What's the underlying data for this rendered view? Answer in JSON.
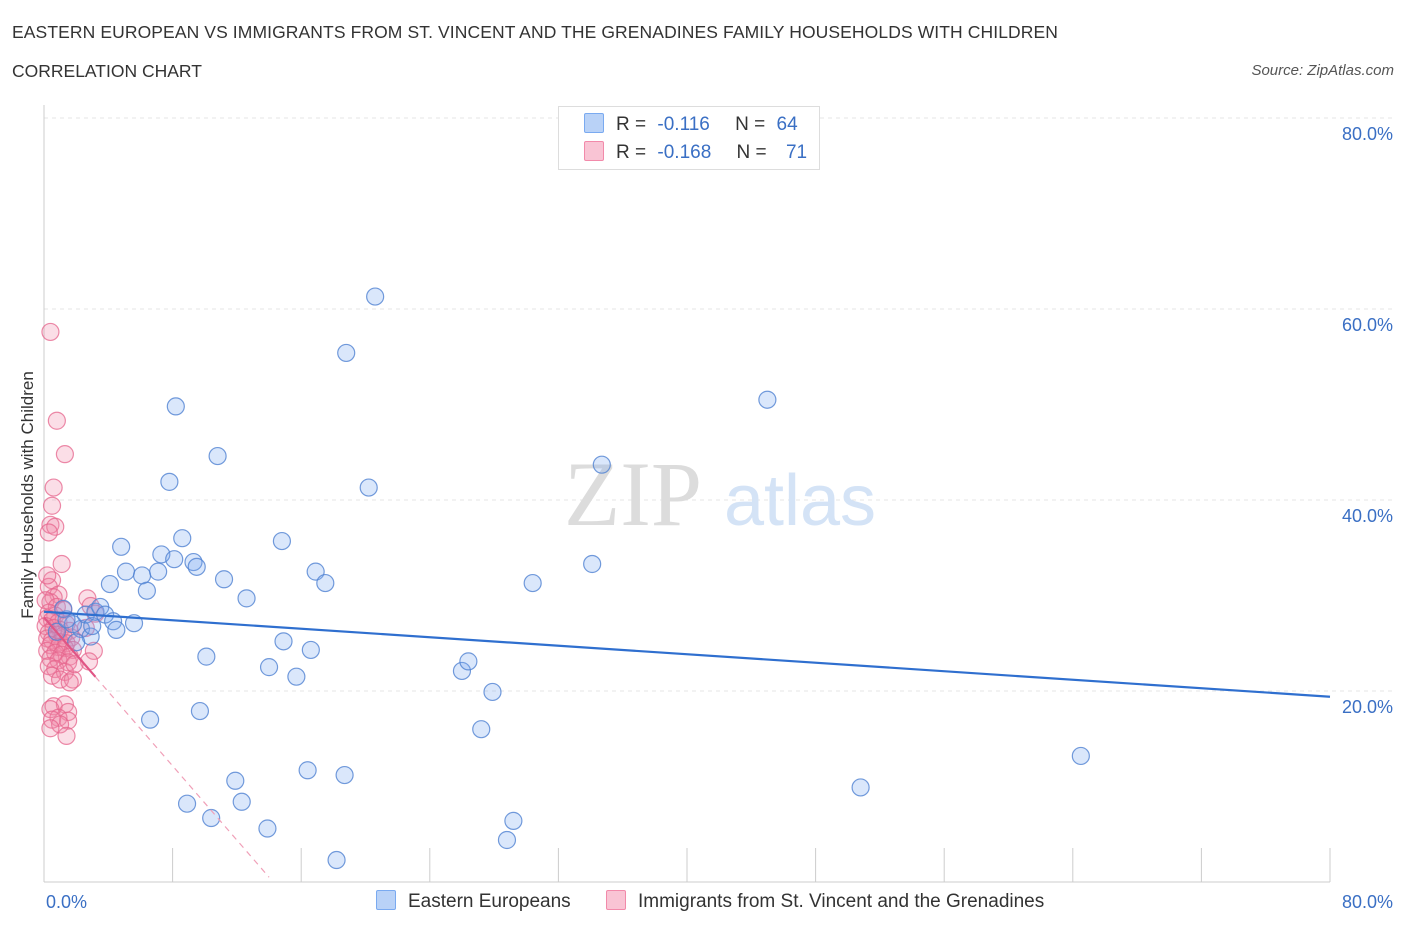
{
  "title": "EASTERN EUROPEAN VS IMMIGRANTS FROM ST. VINCENT AND THE GRENADINES FAMILY HOUSEHOLDS WITH CHILDREN",
  "subtitle": "CORRELATION CHART",
  "source": "Source: ZipAtlas.com",
  "watermark": {
    "zip": "ZIP",
    "atlas": "atlas"
  },
  "legend": {
    "r_label": "R =",
    "n_label": "N =",
    "series": [
      {
        "r": "-0.116",
        "n": "64",
        "color": "#7aaaf0"
      },
      {
        "r": "-0.168",
        "n": "71",
        "color": "#f28aaa"
      }
    ]
  },
  "bottom_legend": {
    "blue": "Eastern Europeans",
    "pink": "Immigrants from St. Vincent and the Grenadines"
  },
  "chart_data": {
    "type": "scatter",
    "title": "EASTERN EUROPEAN VS IMMIGRANTS FROM ST. VINCENT AND THE GRENADINES FAMILY HOUSEHOLDS WITH CHILDREN",
    "xlabel": "",
    "ylabel": "Family Households with Children",
    "xlim": [
      0,
      80
    ],
    "ylim": [
      0,
      80
    ],
    "x_tick_labels": [
      "0.0%",
      "80.0%"
    ],
    "y_tick_labels": [
      "20.0%",
      "40.0%",
      "60.0%",
      "80.0%"
    ],
    "y_ticks": [
      20,
      40,
      60,
      80
    ],
    "series": [
      {
        "name": "Eastern Europeans",
        "color": "#7aaaf0",
        "trend": {
          "x": [
            0,
            80
          ],
          "y": [
            28.3,
            19.4
          ],
          "style": "solid",
          "color": "#2f6fcf"
        },
        "points": [
          [
            2.3,
            26.5
          ],
          [
            1.8,
            27.0
          ],
          [
            2.6,
            28.0
          ],
          [
            2.9,
            25.7
          ],
          [
            3.0,
            26.8
          ],
          [
            3.2,
            28.3
          ],
          [
            3.5,
            28.8
          ],
          [
            3.8,
            28.0
          ],
          [
            4.3,
            27.3
          ],
          [
            4.5,
            26.4
          ],
          [
            4.1,
            31.2
          ],
          [
            4.8,
            35.1
          ],
          [
            5.1,
            32.5
          ],
          [
            5.6,
            27.1
          ],
          [
            6.1,
            32.1
          ],
          [
            6.4,
            30.5
          ],
          [
            7.1,
            32.5
          ],
          [
            7.3,
            34.3
          ],
          [
            8.1,
            33.8
          ],
          [
            8.6,
            36.0
          ],
          [
            9.3,
            33.5
          ],
          [
            9.5,
            33.0
          ],
          [
            11.2,
            31.7
          ],
          [
            12.6,
            29.7
          ],
          [
            7.8,
            41.9
          ],
          [
            8.2,
            49.8
          ],
          [
            10.8,
            44.6
          ],
          [
            14.8,
            35.7
          ],
          [
            16.9,
            32.5
          ],
          [
            17.5,
            31.3
          ],
          [
            20.6,
            61.3
          ],
          [
            18.8,
            55.4
          ],
          [
            20.2,
            41.3
          ],
          [
            14.0,
            22.5
          ],
          [
            15.7,
            21.5
          ],
          [
            14.9,
            25.2
          ],
          [
            16.6,
            24.3
          ],
          [
            10.1,
            23.6
          ],
          [
            9.7,
            17.9
          ],
          [
            6.6,
            17.0
          ],
          [
            8.9,
            8.2
          ],
          [
            10.4,
            6.7
          ],
          [
            11.9,
            10.6
          ],
          [
            12.3,
            8.4
          ],
          [
            13.9,
            5.6
          ],
          [
            16.4,
            11.7
          ],
          [
            18.7,
            11.2
          ],
          [
            18.2,
            2.3
          ],
          [
            30.4,
            31.3
          ],
          [
            34.1,
            33.3
          ],
          [
            34.7,
            43.7
          ],
          [
            26.0,
            22.1
          ],
          [
            26.4,
            23.1
          ],
          [
            27.9,
            19.9
          ],
          [
            27.2,
            16.0
          ],
          [
            29.2,
            6.4
          ],
          [
            28.8,
            4.4
          ],
          [
            45.0,
            50.5
          ],
          [
            50.8,
            9.9
          ],
          [
            64.5,
            13.2
          ],
          [
            0.8,
            26.2
          ],
          [
            1.4,
            27.5
          ],
          [
            2.0,
            25.1
          ],
          [
            1.2,
            28.6
          ]
        ]
      },
      {
        "name": "Immigrants from St. Vincent and the Grenadines",
        "color": "#f28aaa",
        "trend": {
          "x": [
            0,
            14
          ],
          "y": [
            27.7,
            0.5
          ],
          "style": "solid-then-dashed",
          "solid_until_x": 3.2,
          "color": "#e05585"
        },
        "points": [
          [
            0.4,
            57.6
          ],
          [
            0.8,
            48.3
          ],
          [
            1.3,
            44.8
          ],
          [
            0.6,
            41.3
          ],
          [
            0.5,
            39.4
          ],
          [
            0.4,
            37.4
          ],
          [
            0.7,
            37.2
          ],
          [
            0.3,
            36.6
          ],
          [
            1.1,
            33.3
          ],
          [
            0.5,
            31.6
          ],
          [
            0.3,
            30.9
          ],
          [
            0.2,
            32.1
          ],
          [
            0.9,
            30.1
          ],
          [
            0.6,
            29.8
          ],
          [
            0.4,
            29.3
          ],
          [
            0.1,
            29.5
          ],
          [
            0.8,
            28.8
          ],
          [
            1.2,
            28.5
          ],
          [
            0.3,
            28.2
          ],
          [
            0.7,
            27.9
          ],
          [
            0.2,
            27.6
          ],
          [
            0.5,
            27.4
          ],
          [
            0.9,
            27.2
          ],
          [
            1.4,
            27.0
          ],
          [
            0.1,
            26.8
          ],
          [
            0.6,
            26.6
          ],
          [
            1.0,
            26.4
          ],
          [
            1.6,
            26.3
          ],
          [
            0.3,
            26.1
          ],
          [
            0.8,
            25.9
          ],
          [
            1.2,
            25.8
          ],
          [
            1.7,
            25.6
          ],
          [
            0.2,
            25.5
          ],
          [
            0.5,
            25.3
          ],
          [
            1.0,
            25.1
          ],
          [
            1.4,
            25.0
          ],
          [
            0.4,
            24.8
          ],
          [
            0.9,
            24.6
          ],
          [
            1.3,
            24.5
          ],
          [
            1.8,
            24.3
          ],
          [
            0.2,
            24.2
          ],
          [
            0.7,
            24.0
          ],
          [
            1.1,
            23.8
          ],
          [
            1.6,
            23.6
          ],
          [
            0.4,
            23.4
          ],
          [
            0.9,
            23.2
          ],
          [
            1.5,
            23.0
          ],
          [
            0.3,
            22.6
          ],
          [
            0.7,
            22.3
          ],
          [
            1.3,
            22.0
          ],
          [
            0.5,
            21.6
          ],
          [
            1.0,
            21.2
          ],
          [
            1.8,
            21.2
          ],
          [
            1.6,
            20.9
          ],
          [
            0.6,
            18.4
          ],
          [
            1.3,
            18.6
          ],
          [
            0.4,
            18.1
          ],
          [
            1.5,
            17.8
          ],
          [
            0.9,
            17.2
          ],
          [
            0.5,
            17.0
          ],
          [
            1.5,
            16.9
          ],
          [
            1.0,
            16.5
          ],
          [
            0.4,
            16.1
          ],
          [
            1.4,
            15.3
          ],
          [
            2.7,
            29.7
          ],
          [
            2.9,
            28.9
          ],
          [
            3.2,
            28.1
          ],
          [
            2.6,
            26.6
          ],
          [
            3.1,
            24.2
          ],
          [
            2.8,
            23.1
          ],
          [
            1.9,
            22.8
          ]
        ]
      }
    ]
  }
}
